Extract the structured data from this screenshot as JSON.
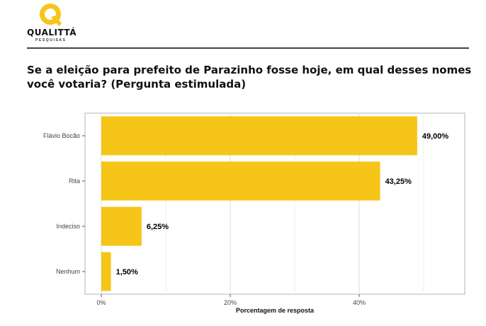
{
  "brand": {
    "name": "QUALITTÁ",
    "tagline": "PESQUISAS",
    "color": "#F5C518"
  },
  "question": "Se a eleição para prefeito de Parazinho fosse hoje, em qual desses nomes você votaria? (Pergunta estimulada)",
  "chart_data": {
    "type": "bar",
    "orientation": "horizontal",
    "categories": [
      "Flávio Bocão",
      "Rita",
      "Indeciso",
      "Nenhum"
    ],
    "values": [
      49.0,
      43.25,
      6.25,
      1.5
    ],
    "data_labels": [
      "49,00%",
      "43,25%",
      "6,25%",
      "1,50%"
    ],
    "xlabel": "Porcentagem de resposta",
    "ylabel": "",
    "xlim": [
      0,
      56
    ],
    "xticks": [
      0,
      20,
      40
    ],
    "xtick_labels": [
      "0%",
      "20%",
      "40%"
    ],
    "grid": true,
    "bar_color": "#F5C518"
  }
}
